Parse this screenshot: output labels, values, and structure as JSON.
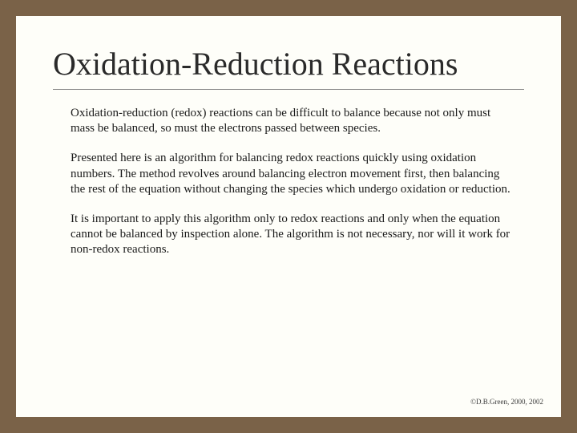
{
  "slide": {
    "title": "Oxidation-Reduction Reactions",
    "paragraphs": [
      "Oxidation-reduction (redox) reactions can be difficult to balance because not only must mass be balanced, so must the electrons passed between species.",
      "Presented here is an algorithm for balancing redox reactions quickly using oxidation numbers.  The method revolves around balancing electron movement first, then balancing the rest of the equation without changing the species which undergo oxidation or reduction.",
      "It is important to apply this algorithm only to redox reactions and only when the equation cannot be balanced by inspection alone.  The algorithm is not necessary, nor will it work for non-redox reactions."
    ],
    "copyright": "©D.B.Green, 2000, 2002"
  },
  "style": {
    "frame_color": "#7a6248",
    "slide_bg": "#fefef9",
    "title_fontsize": 40,
    "body_fontsize": 15,
    "copyright_fontsize": 9,
    "font_family": "Times New Roman"
  }
}
